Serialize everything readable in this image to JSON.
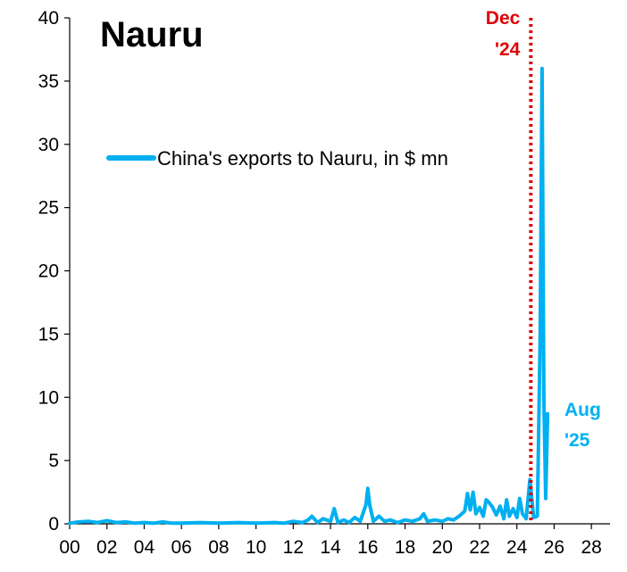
{
  "chart_data": {
    "type": "line",
    "title": "Nauru",
    "xlabel": "",
    "ylabel": "",
    "xlim": [
      0,
      29
    ],
    "ylim": [
      0,
      40
    ],
    "x_ticks": [
      0,
      2,
      4,
      6,
      8,
      10,
      12,
      14,
      16,
      18,
      20,
      22,
      24,
      26,
      28
    ],
    "x_tick_labels": [
      "00",
      "02",
      "04",
      "06",
      "08",
      "10",
      "12",
      "14",
      "16",
      "18",
      "20",
      "22",
      "24",
      "26",
      "28"
    ],
    "y_ticks": [
      0,
      5,
      10,
      15,
      20,
      25,
      30,
      35,
      40
    ],
    "y_tick_labels": [
      "0",
      "5",
      "10",
      "15",
      "20",
      "25",
      "30",
      "35",
      "40"
    ],
    "grid": false,
    "legend_position": "upper-left",
    "series": [
      {
        "name": "China's exports to Nauru, in $ mn",
        "color": "#00B0F0",
        "x": [
          0,
          0.5,
          1.0,
          1.5,
          2.0,
          2.5,
          3.0,
          3.5,
          4.0,
          4.5,
          5.0,
          5.5,
          6.0,
          7.0,
          8.0,
          9.0,
          10.0,
          11.0,
          11.5,
          12.0,
          12.5,
          12.8,
          13.0,
          13.3,
          13.6,
          14.0,
          14.2,
          14.4,
          14.7,
          15.0,
          15.3,
          15.6,
          15.9,
          16.0,
          16.1,
          16.3,
          16.6,
          16.9,
          17.2,
          17.6,
          18.0,
          18.4,
          18.8,
          19.0,
          19.2,
          19.6,
          20.0,
          20.3,
          20.6,
          20.9,
          21.2,
          21.35,
          21.5,
          21.65,
          21.8,
          22.0,
          22.2,
          22.35,
          22.5,
          22.7,
          22.9,
          23.1,
          23.3,
          23.45,
          23.6,
          23.8,
          24.0,
          24.15,
          24.3,
          24.5,
          24.7,
          24.9,
          25.1,
          25.25,
          25.35,
          25.45,
          25.55,
          25.65
        ],
        "y": [
          0.05,
          0.15,
          0.2,
          0.1,
          0.25,
          0.1,
          0.15,
          0.05,
          0.1,
          0.05,
          0.15,
          0.05,
          0.05,
          0.1,
          0.05,
          0.1,
          0.05,
          0.1,
          0.05,
          0.2,
          0.1,
          0.3,
          0.6,
          0.1,
          0.4,
          0.2,
          1.2,
          0.1,
          0.3,
          0.1,
          0.5,
          0.2,
          1.5,
          2.8,
          1.5,
          0.2,
          0.6,
          0.2,
          0.3,
          0.1,
          0.3,
          0.2,
          0.4,
          0.8,
          0.2,
          0.3,
          0.2,
          0.4,
          0.3,
          0.6,
          1.0,
          2.4,
          1.1,
          2.5,
          0.8,
          1.3,
          0.6,
          1.9,
          1.7,
          1.3,
          0.7,
          1.4,
          0.4,
          1.9,
          0.6,
          1.2,
          0.5,
          2.0,
          0.8,
          0.4,
          3.5,
          0.5,
          0.6,
          15.0,
          36.0,
          10.0,
          2.0,
          8.7
        ]
      }
    ],
    "annotations": [
      {
        "label_line1": "Dec",
        "label_line2": "'24",
        "x": 24.75,
        "color": "#E00000",
        "style": "dotted vertical line"
      },
      {
        "label_line1": "Aug",
        "label_line2": "'25",
        "x": 25.65,
        "color": "#00B0F0"
      }
    ]
  }
}
